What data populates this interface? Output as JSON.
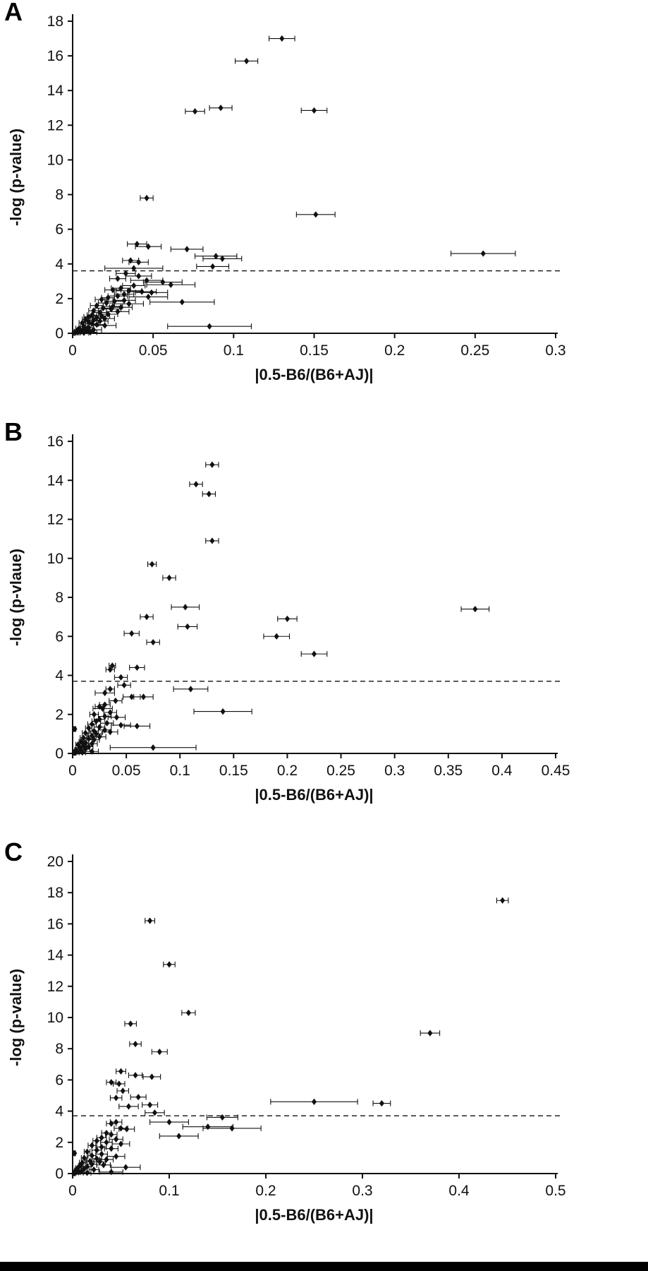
{
  "styles": {
    "ink": "#111111",
    "background": "#ffffff",
    "threshold_line_style": "dashed"
  },
  "chart_data": [
    {
      "type": "scatter",
      "panel_label": "A",
      "xlabel": "|0.5-B6/(B6+AJ)|",
      "ylabel": "-log (p-value)",
      "xlim": [
        0,
        0.3
      ],
      "xticks": [
        0,
        0.05,
        0.1,
        0.15,
        0.2,
        0.25,
        0.3
      ],
      "ylim": [
        0,
        18
      ],
      "yticks": [
        0,
        2,
        4,
        6,
        8,
        10,
        12,
        14,
        16,
        18
      ],
      "threshold_y": 3.6,
      "marker": "diamond",
      "marker_color": "#111111",
      "error_bar_axis": "x",
      "points": [
        [
          0.13,
          17.0,
          0.008
        ],
        [
          0.108,
          15.7,
          0.007
        ],
        [
          0.092,
          13.0,
          0.007
        ],
        [
          0.076,
          12.8,
          0.006
        ],
        [
          0.15,
          12.85,
          0.008
        ],
        [
          0.046,
          7.8,
          0.004
        ],
        [
          0.151,
          6.85,
          0.012
        ],
        [
          0.255,
          4.6,
          0.02
        ],
        [
          0.04,
          5.15,
          0.006
        ],
        [
          0.047,
          5.0,
          0.008
        ],
        [
          0.071,
          4.85,
          0.01
        ],
        [
          0.089,
          4.45,
          0.013
        ],
        [
          0.093,
          4.3,
          0.012
        ],
        [
          0.087,
          3.85,
          0.01
        ],
        [
          0.036,
          4.2,
          0.005
        ],
        [
          0.041,
          4.1,
          0.006
        ],
        [
          0.038,
          3.75,
          0.018
        ],
        [
          0.033,
          3.45,
          0.006
        ],
        [
          0.041,
          3.3,
          0.008
        ],
        [
          0.028,
          3.15,
          0.005
        ],
        [
          0.046,
          3.05,
          0.01
        ],
        [
          0.056,
          2.95,
          0.012
        ],
        [
          0.061,
          2.8,
          0.015
        ],
        [
          0.038,
          2.75,
          0.007
        ],
        [
          0.03,
          2.6,
          0.006
        ],
        [
          0.025,
          2.5,
          0.005
        ],
        [
          0.035,
          2.45,
          0.008
        ],
        [
          0.043,
          2.4,
          0.009
        ],
        [
          0.049,
          2.35,
          0.01
        ],
        [
          0.032,
          2.25,
          0.006
        ],
        [
          0.028,
          2.15,
          0.006
        ],
        [
          0.047,
          2.1,
          0.012
        ],
        [
          0.022,
          2.05,
          0.004
        ],
        [
          0.018,
          1.95,
          0.004
        ],
        [
          0.032,
          1.9,
          0.007
        ],
        [
          0.026,
          1.85,
          0.006
        ],
        [
          0.068,
          1.8,
          0.02
        ],
        [
          0.021,
          1.75,
          0.005
        ],
        [
          0.035,
          1.7,
          0.009
        ],
        [
          0.015,
          1.6,
          0.004
        ],
        [
          0.025,
          1.55,
          0.006
        ],
        [
          0.03,
          1.5,
          0.007
        ],
        [
          0.019,
          1.45,
          0.005
        ],
        [
          0.024,
          1.4,
          0.006
        ],
        [
          0.013,
          1.3,
          0.003
        ],
        [
          0.028,
          1.25,
          0.007
        ],
        [
          0.017,
          1.2,
          0.004
        ],
        [
          0.022,
          1.1,
          0.006
        ],
        [
          0.012,
          1.05,
          0.003
        ],
        [
          0.018,
          1.0,
          0.005
        ],
        [
          0.01,
          0.95,
          0.003
        ],
        [
          0.015,
          0.9,
          0.004
        ],
        [
          0.02,
          0.85,
          0.006
        ],
        [
          0.008,
          0.8,
          0.002
        ],
        [
          0.013,
          0.75,
          0.004
        ],
        [
          0.017,
          0.7,
          0.005
        ],
        [
          0.01,
          0.65,
          0.003
        ],
        [
          0.006,
          0.6,
          0.002
        ],
        [
          0.012,
          0.55,
          0.004
        ],
        [
          0.015,
          0.5,
          0.005
        ],
        [
          0.02,
          0.45,
          0.007
        ],
        [
          0.085,
          0.4,
          0.026
        ],
        [
          0.007,
          0.38,
          0.002
        ],
        [
          0.01,
          0.33,
          0.003
        ],
        [
          0.004,
          0.28,
          0.002
        ],
        [
          0.008,
          0.25,
          0.003
        ],
        [
          0.013,
          0.2,
          0.005
        ],
        [
          0.003,
          0.18,
          0.001
        ],
        [
          0.006,
          0.15,
          0.002
        ],
        [
          0.009,
          0.12,
          0.003
        ],
        [
          0.002,
          0.1,
          0.001
        ],
        [
          0.005,
          0.08,
          0.002
        ],
        [
          0.011,
          0.06,
          0.004
        ],
        [
          0.003,
          0.05,
          0.002
        ],
        [
          0.007,
          0.03,
          0.003
        ],
        [
          0.001,
          0.02,
          0.001
        ]
      ]
    },
    {
      "type": "scatter",
      "panel_label": "B",
      "xlabel": "|0.5-B6/(B6+AJ)|",
      "ylabel": "-log (p-vlaue)",
      "xlim": [
        0,
        0.45
      ],
      "xticks": [
        0,
        0.05,
        0.1,
        0.15,
        0.2,
        0.25,
        0.3,
        0.35,
        0.4,
        0.45
      ],
      "ylim": [
        0,
        16
      ],
      "yticks": [
        0,
        2,
        4,
        6,
        8,
        10,
        12,
        14,
        16
      ],
      "threshold_y": 3.7,
      "marker": "diamond",
      "marker_color": "#111111",
      "error_bar_axis": "x",
      "points": [
        [
          0.13,
          14.8,
          0.006
        ],
        [
          0.115,
          13.8,
          0.006
        ],
        [
          0.127,
          13.3,
          0.006
        ],
        [
          0.13,
          10.9,
          0.006
        ],
        [
          0.074,
          9.7,
          0.004
        ],
        [
          0.09,
          9.0,
          0.006
        ],
        [
          0.105,
          7.5,
          0.013
        ],
        [
          0.069,
          7.0,
          0.006
        ],
        [
          0.2,
          6.9,
          0.009
        ],
        [
          0.375,
          7.4,
          0.013
        ],
        [
          0.107,
          6.5,
          0.009
        ],
        [
          0.055,
          6.15,
          0.007
        ],
        [
          0.19,
          6.0,
          0.012
        ],
        [
          0.075,
          5.7,
          0.006
        ],
        [
          0.225,
          5.1,
          0.012
        ],
        [
          0.037,
          4.5,
          0.003
        ],
        [
          0.06,
          4.4,
          0.007
        ],
        [
          0.035,
          4.3,
          0.004
        ],
        [
          0.045,
          3.9,
          0.006
        ],
        [
          0.048,
          3.5,
          0.006
        ],
        [
          0.11,
          3.3,
          0.016
        ],
        [
          0.035,
          3.3,
          0.004
        ],
        [
          0.03,
          3.1,
          0.009
        ],
        [
          0.055,
          2.9,
          0.008
        ],
        [
          0.066,
          2.9,
          0.009
        ],
        [
          0.04,
          2.7,
          0.006
        ],
        [
          0.03,
          2.5,
          0.005
        ],
        [
          0.025,
          2.4,
          0.004
        ],
        [
          0.028,
          2.3,
          0.009
        ],
        [
          0.14,
          2.15,
          0.027
        ],
        [
          0.035,
          2.1,
          0.006
        ],
        [
          0.02,
          2.0,
          0.004
        ],
        [
          0.03,
          1.9,
          0.006
        ],
        [
          0.041,
          1.85,
          0.008
        ],
        [
          0.025,
          1.75,
          0.005
        ],
        [
          0.022,
          1.65,
          0.004
        ],
        [
          0.032,
          1.55,
          0.006
        ],
        [
          0.018,
          1.5,
          0.004
        ],
        [
          0.045,
          1.45,
          0.009
        ],
        [
          0.06,
          1.4,
          0.012
        ],
        [
          0.025,
          1.35,
          0.005
        ],
        [
          0.015,
          1.3,
          0.003
        ],
        [
          0.002,
          1.25,
          0.001
        ],
        [
          0.03,
          1.2,
          0.006
        ],
        [
          0.02,
          1.15,
          0.004
        ],
        [
          0.035,
          1.1,
          0.007
        ],
        [
          0.012,
          1.05,
          0.003
        ],
        [
          0.022,
          1.0,
          0.005
        ],
        [
          0.018,
          0.9,
          0.004
        ],
        [
          0.025,
          0.85,
          0.006
        ],
        [
          0.01,
          0.8,
          0.003
        ],
        [
          0.015,
          0.75,
          0.004
        ],
        [
          0.02,
          0.7,
          0.005
        ],
        [
          0.008,
          0.6,
          0.002
        ],
        [
          0.012,
          0.55,
          0.003
        ],
        [
          0.018,
          0.5,
          0.005
        ],
        [
          0.005,
          0.45,
          0.002
        ],
        [
          0.01,
          0.4,
          0.003
        ],
        [
          0.015,
          0.35,
          0.004
        ],
        [
          0.075,
          0.3,
          0.04
        ],
        [
          0.007,
          0.28,
          0.002
        ],
        [
          0.012,
          0.22,
          0.004
        ],
        [
          0.003,
          0.18,
          0.001
        ],
        [
          0.008,
          0.15,
          0.003
        ],
        [
          0.018,
          0.1,
          0.006
        ],
        [
          0.004,
          0.08,
          0.002
        ],
        [
          0.009,
          0.05,
          0.003
        ],
        [
          0.002,
          0.03,
          0.001
        ]
      ]
    },
    {
      "type": "scatter",
      "panel_label": "C",
      "xlabel": "|0.5-B6/(B6+AJ)|",
      "ylabel": "-log (p-value)",
      "xlim": [
        0,
        0.5
      ],
      "xticks": [
        0,
        0.1,
        0.2,
        0.3,
        0.4,
        0.5
      ],
      "ylim": [
        0,
        20
      ],
      "yticks": [
        0,
        2,
        4,
        6,
        8,
        10,
        12,
        14,
        16,
        18,
        20
      ],
      "threshold_y": 3.7,
      "marker": "diamond",
      "marker_color": "#111111",
      "error_bar_axis": "x",
      "points": [
        [
          0.445,
          17.5,
          0.006
        ],
        [
          0.08,
          16.2,
          0.005
        ],
        [
          0.1,
          13.4,
          0.006
        ],
        [
          0.12,
          10.3,
          0.007
        ],
        [
          0.06,
          9.6,
          0.006
        ],
        [
          0.37,
          9.0,
          0.01
        ],
        [
          0.065,
          8.3,
          0.006
        ],
        [
          0.09,
          7.8,
          0.008
        ],
        [
          0.05,
          6.55,
          0.005
        ],
        [
          0.065,
          6.3,
          0.007
        ],
        [
          0.082,
          6.2,
          0.009
        ],
        [
          0.04,
          5.85,
          0.005
        ],
        [
          0.048,
          5.75,
          0.006
        ],
        [
          0.052,
          5.3,
          0.006
        ],
        [
          0.068,
          4.9,
          0.008
        ],
        [
          0.045,
          4.85,
          0.006
        ],
        [
          0.25,
          4.6,
          0.045
        ],
        [
          0.32,
          4.5,
          0.009
        ],
        [
          0.08,
          4.4,
          0.008
        ],
        [
          0.058,
          4.3,
          0.01
        ],
        [
          0.085,
          3.9,
          0.01
        ],
        [
          0.155,
          3.6,
          0.016
        ],
        [
          0.1,
          3.3,
          0.02
        ],
        [
          0.045,
          3.3,
          0.006
        ],
        [
          0.04,
          3.2,
          0.005
        ],
        [
          0.14,
          3.0,
          0.026
        ],
        [
          0.165,
          2.9,
          0.03
        ],
        [
          0.11,
          2.4,
          0.02
        ],
        [
          0.05,
          2.9,
          0.007
        ],
        [
          0.056,
          2.85,
          0.008
        ],
        [
          0.035,
          2.6,
          0.005
        ],
        [
          0.04,
          2.5,
          0.006
        ],
        [
          0.03,
          2.3,
          0.005
        ],
        [
          0.045,
          2.2,
          0.007
        ],
        [
          0.025,
          2.1,
          0.004
        ],
        [
          0.035,
          2.0,
          0.006
        ],
        [
          0.05,
          1.9,
          0.009
        ],
        [
          0.02,
          1.8,
          0.004
        ],
        [
          0.03,
          1.7,
          0.005
        ],
        [
          0.04,
          1.6,
          0.007
        ],
        [
          0.025,
          1.5,
          0.005
        ],
        [
          0.015,
          1.4,
          0.003
        ],
        [
          0.002,
          1.3,
          0.001
        ],
        [
          0.03,
          1.25,
          0.006
        ],
        [
          0.02,
          1.15,
          0.004
        ],
        [
          0.045,
          1.1,
          0.009
        ],
        [
          0.012,
          1.0,
          0.003
        ],
        [
          0.025,
          0.95,
          0.005
        ],
        [
          0.035,
          0.9,
          0.007
        ],
        [
          0.018,
          0.8,
          0.004
        ],
        [
          0.028,
          0.75,
          0.006
        ],
        [
          0.01,
          0.7,
          0.003
        ],
        [
          0.02,
          0.6,
          0.005
        ],
        [
          0.032,
          0.55,
          0.007
        ],
        [
          0.008,
          0.5,
          0.002
        ],
        [
          0.015,
          0.45,
          0.004
        ],
        [
          0.055,
          0.4,
          0.015
        ],
        [
          0.005,
          0.35,
          0.002
        ],
        [
          0.012,
          0.3,
          0.003
        ],
        [
          0.022,
          0.25,
          0.005
        ],
        [
          0.003,
          0.2,
          0.001
        ],
        [
          0.009,
          0.15,
          0.003
        ],
        [
          0.04,
          0.1,
          0.012
        ],
        [
          0.006,
          0.08,
          0.002
        ],
        [
          0.015,
          0.05,
          0.004
        ],
        [
          0.002,
          0.02,
          0.001
        ]
      ]
    }
  ]
}
